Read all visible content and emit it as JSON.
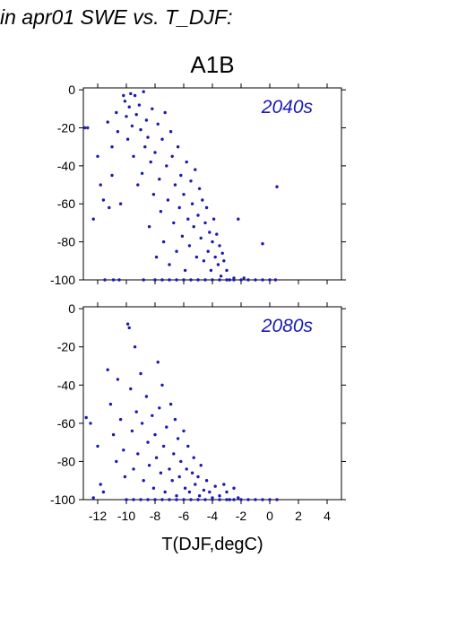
{
  "page": {
    "title": "in apr01 SWE vs. T_DJF:",
    "scenario": "A1B"
  },
  "chart_data": [
    {
      "type": "scatter",
      "panel_label": "2040s",
      "xlabel": "",
      "ylabel": "",
      "xlim": [
        -13,
        5
      ],
      "ylim": [
        -100,
        1
      ],
      "xticks": [
        -12,
        -10,
        -8,
        -6,
        -4,
        -2,
        0,
        2,
        4
      ],
      "yticks": [
        0,
        -20,
        -40,
        -60,
        -80,
        -100
      ],
      "ytick_labels": [
        "0",
        "-20",
        "-40",
        "-60",
        "-80",
        "-100"
      ],
      "point_color": "#1a1ab4",
      "points": [
        [
          -12.9,
          -20
        ],
        [
          -12.7,
          -20
        ],
        [
          -12.3,
          -68
        ],
        [
          -12.0,
          -35
        ],
        [
          -11.8,
          -50
        ],
        [
          -11.6,
          -58
        ],
        [
          -11.5,
          -100
        ],
        [
          -11.3,
          -17
        ],
        [
          -11.0,
          -30
        ],
        [
          -11.0,
          -45
        ],
        [
          -11.2,
          -62
        ],
        [
          -10.9,
          -100
        ],
        [
          -10.7,
          -12
        ],
        [
          -10.6,
          -22
        ],
        [
          -10.5,
          -100
        ],
        [
          -10.4,
          -60
        ],
        [
          -10.2,
          -3
        ],
        [
          -10.1,
          -6
        ],
        [
          -10.0,
          -14
        ],
        [
          -9.9,
          -26
        ],
        [
          -9.8,
          -9
        ],
        [
          -9.7,
          -2
        ],
        [
          -9.6,
          -19
        ],
        [
          -9.5,
          -35
        ],
        [
          -9.4,
          -3
        ],
        [
          -9.3,
          -13
        ],
        [
          -9.2,
          -50
        ],
        [
          -9.1,
          -8
        ],
        [
          -9.0,
          -21
        ],
        [
          -8.9,
          -44
        ],
        [
          -8.8,
          -1
        ],
        [
          -8.7,
          -30
        ],
        [
          -8.6,
          -16
        ],
        [
          -8.5,
          -25
        ],
        [
          -8.4,
          -72
        ],
        [
          -8.3,
          -38
        ],
        [
          -8.2,
          -10
        ],
        [
          -8.1,
          -55
        ],
        [
          -8.0,
          -33
        ],
        [
          -7.9,
          -88
        ],
        [
          -7.8,
          -18
        ],
        [
          -7.7,
          -47
        ],
        [
          -7.6,
          -64
        ],
        [
          -7.5,
          -26
        ],
        [
          -7.4,
          -80
        ],
        [
          -7.3,
          -12
        ],
        [
          -7.2,
          -40
        ],
        [
          -7.1,
          -58
        ],
        [
          -7.0,
          -92
        ],
        [
          -6.9,
          -22
        ],
        [
          -6.8,
          -35
        ],
        [
          -6.7,
          -70
        ],
        [
          -6.6,
          -50
        ],
        [
          -6.5,
          -85
        ],
        [
          -6.4,
          -30
        ],
        [
          -6.3,
          -62
        ],
        [
          -6.2,
          -45
        ],
        [
          -6.1,
          -77
        ],
        [
          -6.0,
          -55
        ],
        [
          -5.9,
          -95
        ],
        [
          -5.8,
          -38
        ],
        [
          -5.7,
          -68
        ],
        [
          -5.6,
          -82
        ],
        [
          -5.5,
          -48
        ],
        [
          -5.4,
          -60
        ],
        [
          -5.3,
          -72
        ],
        [
          -5.2,
          -42
        ],
        [
          -5.1,
          -88
        ],
        [
          -5.0,
          -66
        ],
        [
          -4.9,
          -52
        ],
        [
          -4.8,
          -78
        ],
        [
          -4.7,
          -58
        ],
        [
          -4.6,
          -90
        ],
        [
          -4.5,
          -70
        ],
        [
          -4.4,
          -62
        ],
        [
          -4.3,
          -85
        ],
        [
          -4.2,
          -75
        ],
        [
          -4.1,
          -95
        ],
        [
          -4.0,
          -80
        ],
        [
          -3.9,
          -68
        ],
        [
          -3.8,
          -88
        ],
        [
          -3.7,
          -76
        ],
        [
          -3.6,
          -92
        ],
        [
          -3.5,
          -82
        ],
        [
          -3.4,
          -98
        ],
        [
          -3.3,
          -86
        ],
        [
          -3.2,
          -90
        ],
        [
          -3.0,
          -95
        ],
        [
          -2.8,
          -100
        ],
        [
          -2.5,
          -99
        ],
        [
          -2.2,
          -68
        ],
        [
          -1.8,
          -99
        ],
        [
          -0.5,
          -81
        ],
        [
          0.5,
          -51
        ],
        [
          -8.8,
          -100
        ],
        [
          -8.0,
          -100
        ],
        [
          -7.5,
          -100
        ],
        [
          -7.0,
          -100
        ],
        [
          -6.5,
          -100
        ],
        [
          -6.0,
          -100
        ],
        [
          -5.5,
          -100
        ],
        [
          -5.0,
          -100
        ],
        [
          -4.5,
          -100
        ],
        [
          -4.0,
          -100
        ],
        [
          -3.5,
          -100
        ],
        [
          -3.0,
          -100
        ],
        [
          -2.5,
          -100
        ],
        [
          -2.0,
          -100
        ],
        [
          -1.5,
          -100
        ],
        [
          -1.0,
          -100
        ],
        [
          -0.5,
          -100
        ],
        [
          0.0,
          -100
        ],
        [
          0.4,
          -100
        ]
      ]
    },
    {
      "type": "scatter",
      "panel_label": "2080s",
      "xlabel": "T(DJF,degC)",
      "ylabel": "",
      "xlim": [
        -13,
        5
      ],
      "ylim": [
        -100,
        1
      ],
      "xticks": [
        -12,
        -10,
        -8,
        -6,
        -4,
        -2,
        0,
        2,
        4
      ],
      "xtick_labels": [
        "-12",
        "-10",
        "-8",
        "-6",
        "-4",
        "-2",
        "0",
        "2",
        "4"
      ],
      "yticks": [
        0,
        -20,
        -40,
        -60,
        -80,
        -100
      ],
      "ytick_labels": [
        "0",
        "-20",
        "-40",
        "-60",
        "-80",
        "-100"
      ],
      "point_color": "#1a1ab4",
      "points": [
        [
          -12.8,
          -57
        ],
        [
          -12.5,
          -60
        ],
        [
          -12.3,
          -99
        ],
        [
          -12.0,
          -72
        ],
        [
          -11.8,
          -92
        ],
        [
          -11.6,
          -96
        ],
        [
          -11.3,
          -32
        ],
        [
          -11.1,
          -50
        ],
        [
          -10.9,
          -66
        ],
        [
          -10.7,
          -80
        ],
        [
          -10.6,
          -37
        ],
        [
          -10.4,
          -58
        ],
        [
          -10.2,
          -74
        ],
        [
          -10.1,
          -88
        ],
        [
          -9.9,
          -8
        ],
        [
          -9.8,
          -10
        ],
        [
          -9.7,
          -42
        ],
        [
          -9.6,
          -64
        ],
        [
          -9.5,
          -84
        ],
        [
          -9.4,
          -20
        ],
        [
          -9.3,
          -54
        ],
        [
          -9.2,
          -76
        ],
        [
          -9.0,
          -34
        ],
        [
          -8.9,
          -60
        ],
        [
          -8.8,
          -90
        ],
        [
          -8.6,
          -46
        ],
        [
          -8.5,
          -70
        ],
        [
          -8.4,
          -82
        ],
        [
          -8.2,
          -56
        ],
        [
          -8.1,
          -94
        ],
        [
          -8.0,
          -66
        ],
        [
          -7.9,
          -78
        ],
        [
          -7.8,
          -28
        ],
        [
          -7.7,
          -52
        ],
        [
          -7.6,
          -86
        ],
        [
          -7.5,
          -40
        ],
        [
          -7.4,
          -72
        ],
        [
          -7.3,
          -96
        ],
        [
          -7.2,
          -62
        ],
        [
          -7.0,
          -84
        ],
        [
          -6.9,
          -50
        ],
        [
          -6.8,
          -90
        ],
        [
          -6.7,
          -76
        ],
        [
          -6.6,
          -58
        ],
        [
          -6.5,
          -98
        ],
        [
          -6.4,
          -68
        ],
        [
          -6.3,
          -88
        ],
        [
          -6.2,
          -80
        ],
        [
          -6.0,
          -64
        ],
        [
          -5.9,
          -94
        ],
        [
          -5.8,
          -84
        ],
        [
          -5.7,
          -72
        ],
        [
          -5.6,
          -96
        ],
        [
          -5.4,
          -86
        ],
        [
          -5.3,
          -78
        ],
        [
          -5.2,
          -92
        ],
        [
          -5.0,
          -88
        ],
        [
          -4.9,
          -98
        ],
        [
          -4.8,
          -82
        ],
        [
          -4.6,
          -95
        ],
        [
          -4.4,
          -90
        ],
        [
          -4.2,
          -96
        ],
        [
          -4.0,
          -99
        ],
        [
          -3.8,
          -93
        ],
        [
          -3.5,
          -98
        ],
        [
          -3.2,
          -92
        ],
        [
          -3.0,
          -96
        ],
        [
          -2.8,
          -100
        ],
        [
          -2.5,
          -94
        ],
        [
          -2.2,
          -99
        ],
        [
          -10.0,
          -100
        ],
        [
          -9.5,
          -100
        ],
        [
          -9.0,
          -100
        ],
        [
          -8.5,
          -100
        ],
        [
          -8.0,
          -100
        ],
        [
          -7.5,
          -100
        ],
        [
          -7.0,
          -100
        ],
        [
          -6.5,
          -100
        ],
        [
          -6.0,
          -100
        ],
        [
          -5.5,
          -100
        ],
        [
          -5.0,
          -100
        ],
        [
          -4.5,
          -100
        ],
        [
          -4.0,
          -100
        ],
        [
          -3.5,
          -100
        ],
        [
          -3.0,
          -100
        ],
        [
          -2.5,
          -100
        ],
        [
          -2.0,
          -100
        ],
        [
          -1.5,
          -100
        ],
        [
          -1.0,
          -100
        ],
        [
          -0.5,
          -100
        ],
        [
          0.0,
          -100
        ],
        [
          0.5,
          -100
        ]
      ]
    }
  ]
}
